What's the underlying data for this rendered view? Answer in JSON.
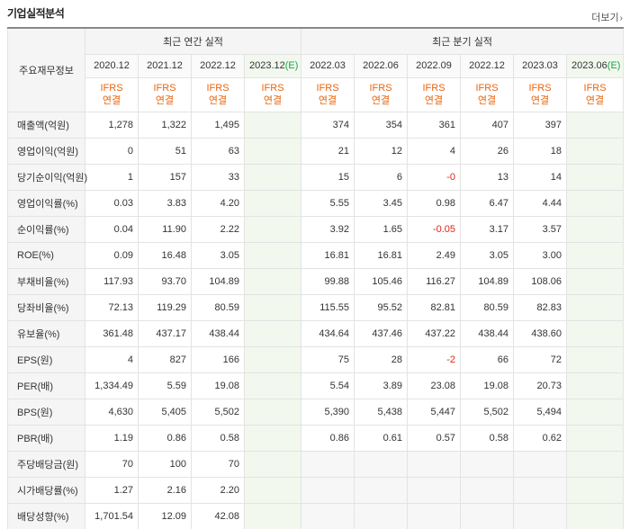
{
  "header": {
    "title": "기업실적분석",
    "more_label": "더보기",
    "more_icon": "chevron-right-icon"
  },
  "table": {
    "corner_label": "주요재무정보",
    "annual_group": "최근 연간 실적",
    "quarter_group": "최근 분기 실적",
    "annual_periods": [
      "2020.12",
      "2021.12",
      "2022.12",
      "2023.12"
    ],
    "annual_est_suffix": "(E)",
    "quarter_periods": [
      "2022.03",
      "2022.06",
      "2022.09",
      "2022.12",
      "2023.03",
      "2023.06"
    ],
    "quarter_est_suffix": "(E)",
    "ifrs_top": "IFRS",
    "ifrs_bottom": "연결",
    "rows": [
      {
        "label": "매출액(억원)",
        "annual": [
          "1,278",
          "1,322",
          "1,495",
          ""
        ],
        "quarter": [
          "374",
          "354",
          "361",
          "407",
          "397",
          ""
        ]
      },
      {
        "label": "영업이익(억원)",
        "annual": [
          "0",
          "51",
          "63",
          ""
        ],
        "quarter": [
          "21",
          "12",
          "4",
          "26",
          "18",
          ""
        ]
      },
      {
        "label": "당기순이익(억원)",
        "annual": [
          "1",
          "157",
          "33",
          ""
        ],
        "quarter": [
          "15",
          "6",
          "-0",
          "13",
          "14",
          ""
        ]
      },
      {
        "label": "영업이익률(%)",
        "annual": [
          "0.03",
          "3.83",
          "4.20",
          ""
        ],
        "quarter": [
          "5.55",
          "3.45",
          "0.98",
          "6.47",
          "4.44",
          ""
        ]
      },
      {
        "label": "순이익률(%)",
        "annual": [
          "0.04",
          "11.90",
          "2.22",
          ""
        ],
        "quarter": [
          "3.92",
          "1.65",
          "-0.05",
          "3.17",
          "3.57",
          ""
        ]
      },
      {
        "label": "ROE(%)",
        "annual": [
          "0.09",
          "16.48",
          "3.05",
          ""
        ],
        "quarter": [
          "16.81",
          "16.81",
          "2.49",
          "3.05",
          "3.00",
          ""
        ]
      },
      {
        "label": "부채비율(%)",
        "annual": [
          "117.93",
          "93.70",
          "104.89",
          ""
        ],
        "quarter": [
          "99.88",
          "105.46",
          "116.27",
          "104.89",
          "108.06",
          ""
        ]
      },
      {
        "label": "당좌비율(%)",
        "annual": [
          "72.13",
          "119.29",
          "80.59",
          ""
        ],
        "quarter": [
          "115.55",
          "95.52",
          "82.81",
          "80.59",
          "82.83",
          ""
        ]
      },
      {
        "label": "유보율(%)",
        "annual": [
          "361.48",
          "437.17",
          "438.44",
          ""
        ],
        "quarter": [
          "434.64",
          "437.46",
          "437.22",
          "438.44",
          "438.60",
          ""
        ]
      },
      {
        "label": "EPS(원)",
        "annual": [
          "4",
          "827",
          "166",
          ""
        ],
        "quarter": [
          "75",
          "28",
          "-2",
          "66",
          "72",
          ""
        ]
      },
      {
        "label": "PER(배)",
        "annual": [
          "1,334.49",
          "5.59",
          "19.08",
          ""
        ],
        "quarter": [
          "5.54",
          "3.89",
          "23.08",
          "19.08",
          "20.73",
          ""
        ]
      },
      {
        "label": "BPS(원)",
        "annual": [
          "4,630",
          "5,405",
          "5,502",
          ""
        ],
        "quarter": [
          "5,390",
          "5,438",
          "5,447",
          "5,502",
          "5,494",
          ""
        ]
      },
      {
        "label": "PBR(배)",
        "annual": [
          "1.19",
          "0.86",
          "0.58",
          ""
        ],
        "quarter": [
          "0.86",
          "0.61",
          "0.57",
          "0.58",
          "0.62",
          ""
        ]
      },
      {
        "label": "주당배당금(원)",
        "annual": [
          "70",
          "100",
          "70",
          ""
        ],
        "quarter": [
          "",
          "",
          "",
          "",
          "",
          ""
        ]
      },
      {
        "label": "시가배당률(%)",
        "annual": [
          "1.27",
          "2.16",
          "2.20",
          ""
        ],
        "quarter": [
          "",
          "",
          "",
          "",
          "",
          ""
        ]
      },
      {
        "label": "배당성향(%)",
        "annual": [
          "1,701.54",
          "12.09",
          "42.08",
          ""
        ],
        "quarter": [
          "",
          "",
          "",
          "",
          "",
          ""
        ]
      }
    ],
    "negative_color": "#e0241b",
    "ifrs_color": "#e8650d",
    "estimate_color": "#1aa34a"
  }
}
